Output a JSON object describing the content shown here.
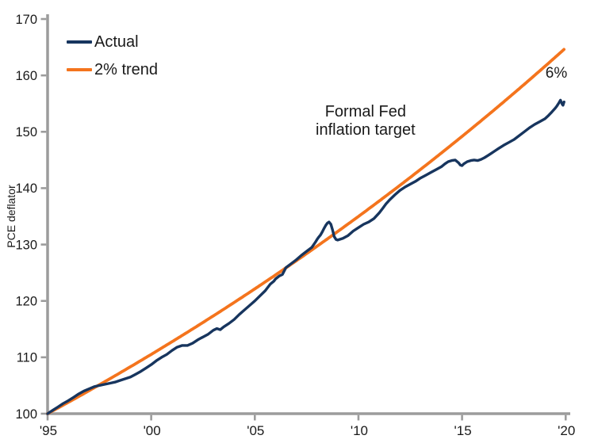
{
  "chart_data": {
    "type": "line",
    "title": "",
    "xlabel": "",
    "ylabel": "PCE deflator",
    "xlim": [
      1995,
      2020.22
    ],
    "ylim": [
      100,
      170
    ],
    "grid": false,
    "legend_position": "top-left",
    "colors": {
      "actual_line": "#17355e",
      "trend_line": "#f4741d",
      "axis": "#9c9c9c",
      "text": "#1a1a1a",
      "background": "#ffffff"
    },
    "x_axis": {
      "ticks": [
        {
          "year": 1995,
          "label": "'95"
        },
        {
          "year": 2000,
          "label": "'00"
        },
        {
          "year": 2005,
          "label": "'05"
        },
        {
          "year": 2010,
          "label": "'10"
        },
        {
          "year": 2015,
          "label": "'15"
        },
        {
          "year": 2020,
          "label": "'20"
        }
      ]
    },
    "y_axis": {
      "ticks": [
        {
          "value": 100,
          "label": "100"
        },
        {
          "value": 110,
          "label": "110"
        },
        {
          "value": 120,
          "label": "120"
        },
        {
          "value": 130,
          "label": "130"
        },
        {
          "value": 140,
          "label": "140"
        },
        {
          "value": 150,
          "label": "150"
        },
        {
          "value": 160,
          "label": "160"
        },
        {
          "value": 170,
          "label": "170"
        }
      ]
    },
    "annotations": {
      "fed_target": {
        "line1": "Formal Fed",
        "line2": "inflation target",
        "x": 2010.34,
        "y": 151.9
      },
      "gap_label": {
        "text": "6%",
        "x": 2019.55,
        "y": 160.3
      }
    },
    "series": [
      {
        "name": "Actual",
        "color": "#17355e",
        "points": [
          [
            1995.0,
            100.0
          ],
          [
            1995.25,
            100.6
          ],
          [
            1995.5,
            101.2
          ],
          [
            1995.75,
            101.8
          ],
          [
            1996.0,
            102.3
          ],
          [
            1996.25,
            102.9
          ],
          [
            1996.5,
            103.5
          ],
          [
            1996.75,
            104.0
          ],
          [
            1997.0,
            104.4
          ],
          [
            1997.25,
            104.8
          ],
          [
            1997.5,
            105.0
          ],
          [
            1997.75,
            105.2
          ],
          [
            1998.0,
            105.4
          ],
          [
            1998.25,
            105.6
          ],
          [
            1998.5,
            105.9
          ],
          [
            1998.75,
            106.2
          ],
          [
            1999.0,
            106.5
          ],
          [
            1999.25,
            107.0
          ],
          [
            1999.5,
            107.5
          ],
          [
            1999.75,
            108.1
          ],
          [
            2000.0,
            108.7
          ],
          [
            2000.25,
            109.4
          ],
          [
            2000.5,
            110.0
          ],
          [
            2000.75,
            110.5
          ],
          [
            2001.0,
            111.2
          ],
          [
            2001.25,
            111.8
          ],
          [
            2001.5,
            112.1
          ],
          [
            2001.75,
            112.1
          ],
          [
            2002.0,
            112.5
          ],
          [
            2002.25,
            113.1
          ],
          [
            2002.5,
            113.6
          ],
          [
            2002.75,
            114.1
          ],
          [
            2003.0,
            114.8
          ],
          [
            2003.17,
            115.1
          ],
          [
            2003.33,
            114.9
          ],
          [
            2003.5,
            115.4
          ],
          [
            2003.75,
            116.0
          ],
          [
            2004.0,
            116.7
          ],
          [
            2004.25,
            117.6
          ],
          [
            2004.5,
            118.4
          ],
          [
            2004.75,
            119.2
          ],
          [
            2005.0,
            120.0
          ],
          [
            2005.25,
            120.9
          ],
          [
            2005.5,
            121.8
          ],
          [
            2005.75,
            123.0
          ],
          [
            2005.92,
            123.5
          ],
          [
            2006.0,
            123.9
          ],
          [
            2006.17,
            124.4
          ],
          [
            2006.33,
            124.7
          ],
          [
            2006.5,
            125.9
          ],
          [
            2006.75,
            126.6
          ],
          [
            2007.0,
            127.3
          ],
          [
            2007.25,
            128.1
          ],
          [
            2007.5,
            128.8
          ],
          [
            2007.75,
            129.5
          ],
          [
            2007.92,
            130.4
          ],
          [
            2008.0,
            130.9
          ],
          [
            2008.08,
            131.3
          ],
          [
            2008.17,
            131.7
          ],
          [
            2008.25,
            132.2
          ],
          [
            2008.33,
            132.8
          ],
          [
            2008.42,
            133.4
          ],
          [
            2008.5,
            133.8
          ],
          [
            2008.58,
            134.0
          ],
          [
            2008.67,
            133.6
          ],
          [
            2008.75,
            132.6
          ],
          [
            2008.83,
            131.4
          ],
          [
            2008.92,
            130.9
          ],
          [
            2009.0,
            130.8
          ],
          [
            2009.25,
            131.1
          ],
          [
            2009.5,
            131.6
          ],
          [
            2009.75,
            132.4
          ],
          [
            2010.0,
            133.0
          ],
          [
            2010.25,
            133.6
          ],
          [
            2010.5,
            134.0
          ],
          [
            2010.75,
            134.6
          ],
          [
            2011.0,
            135.6
          ],
          [
            2011.17,
            136.4
          ],
          [
            2011.33,
            137.2
          ],
          [
            2011.5,
            137.9
          ],
          [
            2011.75,
            138.8
          ],
          [
            2012.0,
            139.6
          ],
          [
            2012.25,
            140.2
          ],
          [
            2012.5,
            140.7
          ],
          [
            2012.75,
            141.2
          ],
          [
            2013.0,
            141.8
          ],
          [
            2013.25,
            142.3
          ],
          [
            2013.5,
            142.8
          ],
          [
            2013.75,
            143.3
          ],
          [
            2014.0,
            143.8
          ],
          [
            2014.17,
            144.3
          ],
          [
            2014.33,
            144.7
          ],
          [
            2014.5,
            144.9
          ],
          [
            2014.67,
            145.0
          ],
          [
            2014.83,
            144.5
          ],
          [
            2014.92,
            144.1
          ],
          [
            2015.0,
            144.0
          ],
          [
            2015.08,
            144.3
          ],
          [
            2015.25,
            144.7
          ],
          [
            2015.42,
            144.9
          ],
          [
            2015.58,
            145.0
          ],
          [
            2015.75,
            144.9
          ],
          [
            2015.92,
            145.1
          ],
          [
            2016.08,
            145.4
          ],
          [
            2016.25,
            145.8
          ],
          [
            2016.42,
            146.2
          ],
          [
            2016.58,
            146.6
          ],
          [
            2016.75,
            147.0
          ],
          [
            2017.0,
            147.6
          ],
          [
            2017.25,
            148.1
          ],
          [
            2017.5,
            148.6
          ],
          [
            2017.75,
            149.3
          ],
          [
            2018.0,
            150.0
          ],
          [
            2018.25,
            150.7
          ],
          [
            2018.5,
            151.3
          ],
          [
            2018.75,
            151.8
          ],
          [
            2019.0,
            152.3
          ],
          [
            2019.17,
            152.9
          ],
          [
            2019.33,
            153.5
          ],
          [
            2019.5,
            154.2
          ],
          [
            2019.58,
            154.6
          ],
          [
            2019.67,
            155.1
          ],
          [
            2019.75,
            155.6
          ],
          [
            2019.83,
            154.9
          ],
          [
            2019.87,
            154.7
          ],
          [
            2019.92,
            155.3
          ]
        ]
      },
      {
        "name": "2% trend",
        "color": "#f4741d",
        "trend": {
          "start_year": 1995,
          "start_value": 100,
          "annual_growth_pct": 2,
          "end_year": 2019.92
        }
      }
    ]
  }
}
